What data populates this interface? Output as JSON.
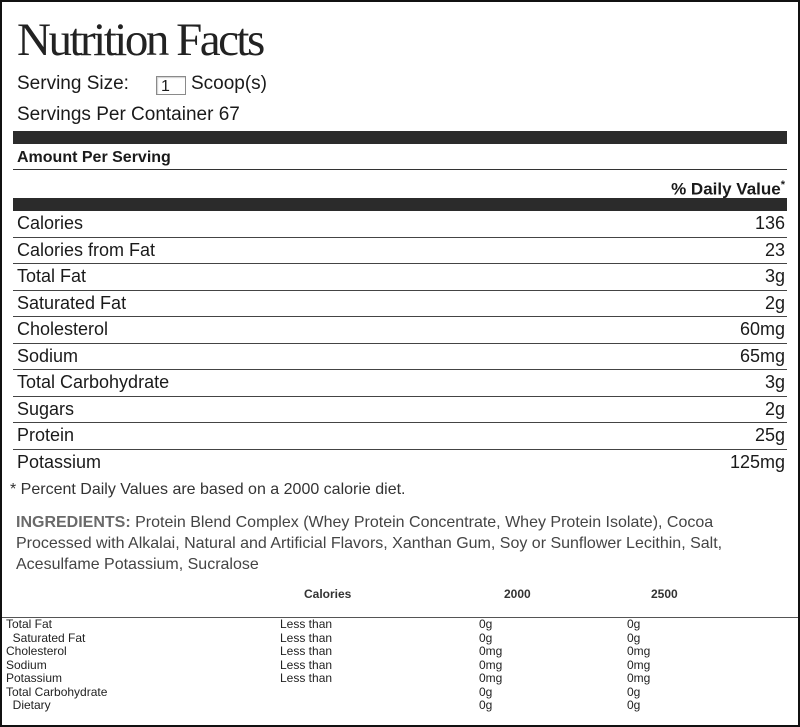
{
  "label": {
    "title": "Nutrition Facts",
    "serving_size_label": "Serving Size:",
    "serving_size_value": "1",
    "serving_unit": "Scoop(s)",
    "servings_per_container": "Servings Per Container 67",
    "amount_per_serving": "Amount Per Serving",
    "daily_value_header": "% Daily Value",
    "daily_value_mark": "*",
    "nutrients": [
      {
        "name": "Calories",
        "value": "136"
      },
      {
        "name": "Calories from Fat",
        "value": "23"
      },
      {
        "name": "Total Fat",
        "value": "3g"
      },
      {
        "name": "Saturated Fat",
        "value": "2g"
      },
      {
        "name": "Cholesterol",
        "value": "60mg"
      },
      {
        "name": "Sodium",
        "value": "65mg"
      },
      {
        "name": "Total Carbohydrate",
        "value": "3g"
      },
      {
        "name": "Sugars",
        "value": "2g"
      },
      {
        "name": "Protein",
        "value": "25g"
      },
      {
        "name": "Potassium",
        "value": "125mg"
      }
    ],
    "footnote": "* Percent Daily Values are based on a 2000 calorie diet.",
    "ingredients_heading": "INGREDIENTS:",
    "ingredients_text": " Protein Blend Complex (Whey Protein Concentrate, Whey Protein Isolate), Cocoa Processed with Alkalai, Natural and Artificial Flavors, Xanthan Gum, Soy or Sunflower Lecithin, Salt, Acesulfame Potassium, Sucralose",
    "dv_table": {
      "headers": {
        "calories": "Calories",
        "c2000": "2000",
        "c2500": "2500"
      },
      "rows": [
        {
          "name": "Total Fat",
          "limit": "Less than",
          "v2000": "0g",
          "v2500": "0g"
        },
        {
          "name": "  Saturated Fat",
          "limit": "Less than",
          "v2000": "0g",
          "v2500": "0g"
        },
        {
          "name": "Cholesterol",
          "limit": "Less than",
          "v2000": "0mg",
          "v2500": "0mg"
        },
        {
          "name": "Sodium",
          "limit": "Less than",
          "v2000": "0mg",
          "v2500": "0mg"
        },
        {
          "name": "Potassium",
          "limit": "Less than",
          "v2000": "0mg",
          "v2500": "0mg"
        },
        {
          "name": "Total Carbohydrate",
          "limit": "",
          "v2000": "0g",
          "v2500": "0g"
        },
        {
          "name": "  Dietary",
          "limit": "",
          "v2000": "0g",
          "v2500": "0g"
        }
      ]
    }
  }
}
